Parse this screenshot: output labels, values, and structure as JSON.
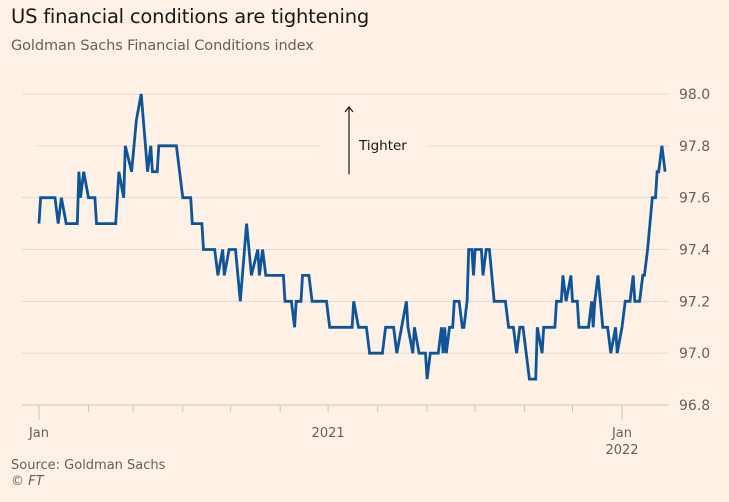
{
  "header": {
    "title": "US financial conditions are tightening",
    "subtitle": "Goldman Sachs Financial Conditions index"
  },
  "footer": {
    "source": "Source: Goldman Sachs",
    "copyright_symbol": "©",
    "copyright_owner": "FT"
  },
  "colors": {
    "background": "#fff1e5",
    "line": "#0f5499",
    "grid": "#e6d9ce",
    "axis_text": "#66605c"
  },
  "chart_data": {
    "type": "line",
    "title": "US financial conditions are tightening",
    "subtitle": "Goldman Sachs Financial Conditions index",
    "xlabel": "",
    "ylabel": "",
    "ylim": [
      96.8,
      98.0
    ],
    "yticks": [
      98.0,
      97.8,
      97.6,
      97.4,
      97.2,
      97.0,
      96.8
    ],
    "ytick_labels": [
      "98.0",
      "97.8",
      "97.6",
      "97.4",
      "97.2",
      "97.0",
      "96.8"
    ],
    "y_axis_side": "right",
    "xlim": [
      "2020-12-20",
      "2022-02-19"
    ],
    "xticks_monthly": [
      "2021-01-01",
      "2021-02-01",
      "2021-03-01",
      "2021-04-01",
      "2021-05-01",
      "2021-06-01",
      "2021-07-01",
      "2021-08-01",
      "2021-09-01",
      "2021-10-01",
      "2021-11-01",
      "2021-12-01",
      "2022-01-01"
    ],
    "xtick_labels": [
      {
        "date": "2021-01-01",
        "lines": [
          "Jan"
        ]
      },
      {
        "date": "2021-07-01",
        "lines": [
          "2021"
        ]
      },
      {
        "date": "2022-01-01",
        "lines": [
          "Jan",
          "2022"
        ]
      }
    ],
    "grid": true,
    "annotation": {
      "text": "Tighter",
      "arrow": "up",
      "value_from": 97.69,
      "value_to": 97.95,
      "date": "2021-07-15"
    },
    "series": [
      {
        "name": "Goldman Sachs Financial Conditions index",
        "points": [
          [
            "2021-01-01",
            97.5
          ],
          [
            "2021-01-02",
            97.6
          ],
          [
            "2021-01-11",
            97.6
          ],
          [
            "2021-01-13",
            97.5
          ],
          [
            "2021-01-15",
            97.6
          ],
          [
            "2021-01-18",
            97.5
          ],
          [
            "2021-01-25",
            97.5
          ],
          [
            "2021-01-26",
            97.7
          ],
          [
            "2021-01-27",
            97.6
          ],
          [
            "2021-01-29",
            97.7
          ],
          [
            "2021-02-01",
            97.6
          ],
          [
            "2021-02-05",
            97.6
          ],
          [
            "2021-02-06",
            97.5
          ],
          [
            "2021-02-18",
            97.5
          ],
          [
            "2021-02-20",
            97.7
          ],
          [
            "2021-02-23",
            97.6
          ],
          [
            "2021-02-24",
            97.8
          ],
          [
            "2021-02-28",
            97.7
          ],
          [
            "2021-03-03",
            97.9
          ],
          [
            "2021-03-06",
            98.0
          ],
          [
            "2021-03-10",
            97.7
          ],
          [
            "2021-03-12",
            97.8
          ],
          [
            "2021-03-13",
            97.7
          ],
          [
            "2021-03-16",
            97.7
          ],
          [
            "2021-03-17",
            97.8
          ],
          [
            "2021-03-28",
            97.8
          ],
          [
            "2021-04-01",
            97.6
          ],
          [
            "2021-04-06",
            97.6
          ],
          [
            "2021-04-07",
            97.5
          ],
          [
            "2021-04-13",
            97.5
          ],
          [
            "2021-04-14",
            97.4
          ],
          [
            "2021-04-21",
            97.4
          ],
          [
            "2021-04-23",
            97.3
          ],
          [
            "2021-04-26",
            97.4
          ],
          [
            "2021-04-27",
            97.3
          ],
          [
            "2021-04-30",
            97.4
          ],
          [
            "2021-05-04",
            97.4
          ],
          [
            "2021-05-07",
            97.2
          ],
          [
            "2021-05-11",
            97.5
          ],
          [
            "2021-05-14",
            97.3
          ],
          [
            "2021-05-18",
            97.4
          ],
          [
            "2021-05-19",
            97.3
          ],
          [
            "2021-05-21",
            97.4
          ],
          [
            "2021-05-23",
            97.3
          ],
          [
            "2021-06-03",
            97.3
          ],
          [
            "2021-06-04",
            97.2
          ],
          [
            "2021-06-08",
            97.2
          ],
          [
            "2021-06-10",
            97.1
          ],
          [
            "2021-06-11",
            97.2
          ],
          [
            "2021-06-14",
            97.2
          ],
          [
            "2021-06-15",
            97.3
          ],
          [
            "2021-06-19",
            97.3
          ],
          [
            "2021-06-21",
            97.2
          ],
          [
            "2021-06-30",
            97.2
          ],
          [
            "2021-07-02",
            97.1
          ],
          [
            "2021-07-16",
            97.1
          ],
          [
            "2021-07-17",
            97.2
          ],
          [
            "2021-07-20",
            97.1
          ],
          [
            "2021-07-25",
            97.1
          ],
          [
            "2021-07-27",
            97.0
          ],
          [
            "2021-08-04",
            97.0
          ],
          [
            "2021-08-06",
            97.1
          ],
          [
            "2021-08-11",
            97.1
          ],
          [
            "2021-08-13",
            97.0
          ],
          [
            "2021-08-16",
            97.1
          ],
          [
            "2021-08-19",
            97.2
          ],
          [
            "2021-08-20",
            97.1
          ],
          [
            "2021-08-23",
            97.0
          ],
          [
            "2021-08-24",
            97.1
          ],
          [
            "2021-08-27",
            97.0
          ],
          [
            "2021-08-31",
            97.0
          ],
          [
            "2021-09-01",
            96.9
          ],
          [
            "2021-09-03",
            97.0
          ],
          [
            "2021-09-08",
            97.0
          ],
          [
            "2021-09-10",
            97.1
          ],
          [
            "2021-09-11",
            97.0
          ],
          [
            "2021-09-12",
            97.1
          ],
          [
            "2021-09-13",
            97.0
          ],
          [
            "2021-09-15",
            97.1
          ],
          [
            "2021-09-17",
            97.1
          ],
          [
            "2021-09-18",
            97.2
          ],
          [
            "2021-09-21",
            97.2
          ],
          [
            "2021-09-23",
            97.1
          ],
          [
            "2021-09-24",
            97.1
          ],
          [
            "2021-09-26",
            97.2
          ],
          [
            "2021-09-27",
            97.4
          ],
          [
            "2021-09-29",
            97.4
          ],
          [
            "2021-09-30",
            97.3
          ],
          [
            "2021-10-01",
            97.4
          ],
          [
            "2021-10-05",
            97.4
          ],
          [
            "2021-10-06",
            97.3
          ],
          [
            "2021-10-08",
            97.4
          ],
          [
            "2021-10-10",
            97.4
          ],
          [
            "2021-10-13",
            97.2
          ],
          [
            "2021-10-20",
            97.2
          ],
          [
            "2021-10-22",
            97.1
          ],
          [
            "2021-10-25",
            97.1
          ],
          [
            "2021-10-27",
            97.0
          ],
          [
            "2021-10-29",
            97.1
          ],
          [
            "2021-10-31",
            97.1
          ],
          [
            "2021-11-02",
            97.0
          ],
          [
            "2021-11-04",
            96.9
          ],
          [
            "2021-11-08",
            96.9
          ],
          [
            "2021-11-09",
            97.1
          ],
          [
            "2021-11-12",
            97.0
          ],
          [
            "2021-11-13",
            97.1
          ],
          [
            "2021-11-20",
            97.1
          ],
          [
            "2021-11-21",
            97.2
          ],
          [
            "2021-11-24",
            97.2
          ],
          [
            "2021-11-25",
            97.3
          ],
          [
            "2021-11-27",
            97.2
          ],
          [
            "2021-11-30",
            97.3
          ],
          [
            "2021-12-01",
            97.2
          ],
          [
            "2021-12-04",
            97.2
          ],
          [
            "2021-12-05",
            97.1
          ],
          [
            "2021-12-11",
            97.1
          ],
          [
            "2021-12-13",
            97.2
          ],
          [
            "2021-12-14",
            97.1
          ],
          [
            "2021-12-15",
            97.2
          ],
          [
            "2021-12-17",
            97.3
          ],
          [
            "2021-12-20",
            97.1
          ],
          [
            "2021-12-23",
            97.1
          ],
          [
            "2021-12-25",
            97.0
          ],
          [
            "2021-12-28",
            97.1
          ],
          [
            "2021-12-29",
            97.0
          ],
          [
            "2022-01-01",
            97.1
          ],
          [
            "2022-01-03",
            97.2
          ],
          [
            "2022-01-06",
            97.2
          ],
          [
            "2022-01-08",
            97.3
          ],
          [
            "2022-01-09",
            97.2
          ],
          [
            "2022-01-12",
            97.2
          ],
          [
            "2022-01-14",
            97.3
          ],
          [
            "2022-01-15",
            97.3
          ],
          [
            "2022-01-17",
            97.4
          ],
          [
            "2022-01-20",
            97.6
          ],
          [
            "2022-01-22",
            97.6
          ],
          [
            "2022-01-23",
            97.7
          ],
          [
            "2022-01-24",
            97.7
          ],
          [
            "2022-01-26",
            97.8
          ],
          [
            "2022-01-28",
            97.7
          ]
        ]
      }
    ]
  }
}
